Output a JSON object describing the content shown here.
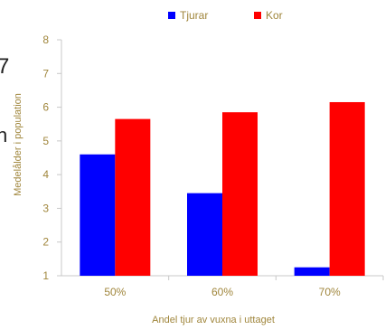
{
  "chart_data": {
    "type": "bar",
    "categories": [
      "50%",
      "60%",
      "70%"
    ],
    "series": [
      {
        "name": "Tjurar",
        "values": [
          4.6,
          3.45,
          1.25
        ]
      },
      {
        "name": "Kor",
        "values": [
          5.65,
          5.85,
          6.15
        ]
      }
    ],
    "xlabel": "Andel tjur av vuxna i uttaget",
    "ylabel": "Medelålder i population",
    "ylim": [
      1,
      8
    ],
    "yticks": [
      1,
      2,
      3,
      4,
      5,
      6,
      7,
      8
    ],
    "legend_position": "top",
    "grid": false,
    "colors": {
      "Tjurar": "#0000ff",
      "Kor": "#ff0000",
      "text": "#a0863c",
      "axis": "#c8c8c8"
    }
  },
  "side_glyphs": [
    "7",
    "n"
  ]
}
